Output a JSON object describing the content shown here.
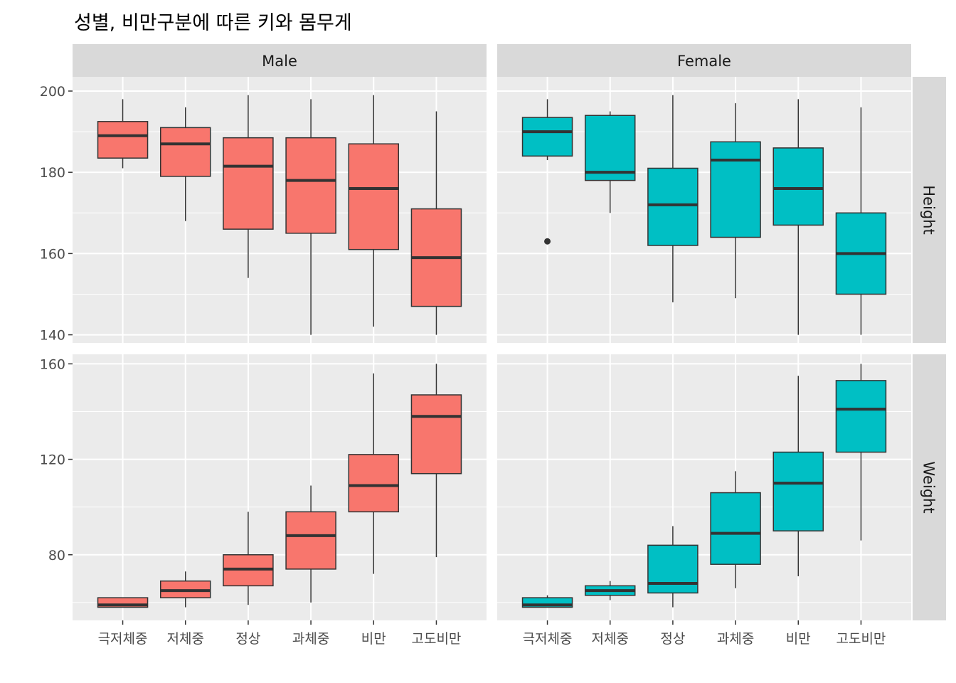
{
  "chart_data": {
    "type": "boxplot",
    "title": "성별, 비만구분에 따른 키와 몸무게",
    "categories": [
      "극저체중",
      "저체중",
      "정상",
      "과체중",
      "비만",
      "고도비만"
    ],
    "facet_columns": [
      "Male",
      "Female"
    ],
    "facet_rows": [
      "Height",
      "Weight"
    ],
    "colors": {
      "Male": "#F8766D",
      "Female": "#00BFC4",
      "panel_bg": "#EBEBEB",
      "strip_bg": "#D9D9D9",
      "grid": "#FFFFFF",
      "outline": "#333333"
    },
    "y_axes": {
      "Height": {
        "ylim": [
          138,
          203.5
        ],
        "ticks": [
          140,
          160,
          180,
          200
        ]
      },
      "Weight": {
        "ylim": [
          52.5,
          164
        ],
        "ticks": [
          80,
          120,
          160
        ]
      }
    },
    "panels": [
      {
        "column": "Male",
        "row": "Height",
        "boxes": [
          {
            "category": "극저체중",
            "low": 181,
            "q1": 183.5,
            "median": 189,
            "q3": 192.5,
            "high": 198,
            "outliers": []
          },
          {
            "category": "저체중",
            "low": 168,
            "q1": 179,
            "median": 187,
            "q3": 191,
            "high": 196,
            "outliers": []
          },
          {
            "category": "정상",
            "low": 154,
            "q1": 166,
            "median": 181.5,
            "q3": 188.5,
            "high": 199,
            "outliers": []
          },
          {
            "category": "과체중",
            "low": 140,
            "q1": 165,
            "median": 178,
            "q3": 188.5,
            "high": 198,
            "outliers": []
          },
          {
            "category": "비만",
            "low": 142,
            "q1": 161,
            "median": 176,
            "q3": 187,
            "high": 199,
            "outliers": []
          },
          {
            "category": "고도비만",
            "low": 140,
            "q1": 147,
            "median": 159,
            "q3": 171,
            "high": 195,
            "outliers": []
          }
        ]
      },
      {
        "column": "Female",
        "row": "Height",
        "boxes": [
          {
            "category": "극저체중",
            "low": 183,
            "q1": 184,
            "median": 190,
            "q3": 193.5,
            "high": 198,
            "outliers": [
              163
            ]
          },
          {
            "category": "저체중",
            "low": 170,
            "q1": 178,
            "median": 180,
            "q3": 194,
            "high": 195,
            "outliers": []
          },
          {
            "category": "정상",
            "low": 148,
            "q1": 162,
            "median": 172,
            "q3": 181,
            "high": 199,
            "outliers": []
          },
          {
            "category": "과체중",
            "low": 149,
            "q1": 164,
            "median": 183,
            "q3": 187.5,
            "high": 197,
            "outliers": []
          },
          {
            "category": "비만",
            "low": 140,
            "q1": 167,
            "median": 176,
            "q3": 186,
            "high": 198,
            "outliers": []
          },
          {
            "category": "고도비만",
            "low": 140,
            "q1": 150,
            "median": 160,
            "q3": 170,
            "high": 196,
            "outliers": []
          }
        ]
      },
      {
        "column": "Male",
        "row": "Weight",
        "boxes": [
          {
            "category": "극저체중",
            "low": 58,
            "q1": 58,
            "median": 59,
            "q3": 62,
            "high": 62,
            "outliers": []
          },
          {
            "category": "저체중",
            "low": 58,
            "q1": 62,
            "median": 65,
            "q3": 69,
            "high": 73,
            "outliers": []
          },
          {
            "category": "정상",
            "low": 59,
            "q1": 67,
            "median": 74,
            "q3": 80,
            "high": 98,
            "outliers": []
          },
          {
            "category": "과체중",
            "low": 60,
            "q1": 74,
            "median": 88,
            "q3": 98,
            "high": 109,
            "outliers": []
          },
          {
            "category": "비만",
            "low": 72,
            "q1": 98,
            "median": 109,
            "q3": 122,
            "high": 156,
            "outliers": []
          },
          {
            "category": "고도비만",
            "low": 79,
            "q1": 114,
            "median": 138,
            "q3": 147,
            "high": 160,
            "outliers": []
          }
        ]
      },
      {
        "column": "Female",
        "row": "Weight",
        "boxes": [
          {
            "category": "극저체중",
            "low": 58,
            "q1": 58,
            "median": 59,
            "q3": 62,
            "high": 63,
            "outliers": []
          },
          {
            "category": "저체중",
            "low": 61,
            "q1": 63,
            "median": 65,
            "q3": 67,
            "high": 69,
            "outliers": []
          },
          {
            "category": "정상",
            "low": 58,
            "q1": 64,
            "median": 68,
            "q3": 84,
            "high": 92,
            "outliers": []
          },
          {
            "category": "과체중",
            "low": 66,
            "q1": 76,
            "median": 89,
            "q3": 106,
            "high": 115,
            "outliers": []
          },
          {
            "category": "비만",
            "low": 71,
            "q1": 90,
            "median": 110,
            "q3": 123,
            "high": 155,
            "outliers": []
          },
          {
            "category": "고도비만",
            "low": 86,
            "q1": 123,
            "median": 141,
            "q3": 153,
            "high": 160,
            "outliers": []
          }
        ]
      }
    ]
  }
}
